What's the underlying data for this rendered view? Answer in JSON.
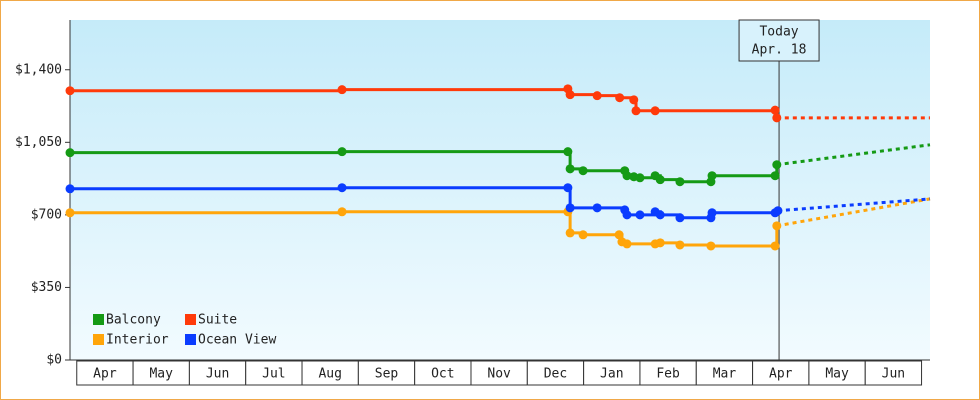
{
  "chart_data": {
    "type": "line",
    "step": true,
    "ylim": [
      0,
      1640
    ],
    "yticks": [
      {
        "value": 0,
        "label": "$0"
      },
      {
        "value": 350,
        "label": "$350"
      },
      {
        "value": 700,
        "label": "$700"
      },
      {
        "value": 1050,
        "label": "$1,050"
      },
      {
        "value": 1400,
        "label": "$1,400"
      }
    ],
    "xlim": [
      -0.12,
      15.15
    ],
    "months": [
      "Apr",
      "May",
      "Jun",
      "Jul",
      "Aug",
      "Sep",
      "Oct",
      "Nov",
      "Dec",
      "Jan",
      "Feb",
      "Mar",
      "Apr",
      "May",
      "Jun"
    ],
    "legend": "lower left",
    "annotation": {
      "x": 12.47,
      "text": "Today",
      "subtext": "Apr. 18"
    },
    "series": [
      {
        "name": "Balcony",
        "color": "#159a15",
        "x": [
          -0.12,
          4.71,
          8.72,
          8.76,
          8.99,
          9.73,
          9.77,
          9.89,
          10.0,
          10.27,
          10.36,
          10.71,
          11.26,
          11.28,
          12.4,
          12.43
        ],
        "values": [
          1000,
          1005,
          1005,
          922,
          913,
          913,
          889,
          884,
          879,
          889,
          870,
          860,
          860,
          889,
          889,
          942
        ],
        "forecast_x": [
          12.43,
          15.15
        ],
        "forecast_values": [
          942,
          1038
        ]
      },
      {
        "name": "Suite",
        "color": "#ff3a0a",
        "x": [
          -0.12,
          4.71,
          8.72,
          8.76,
          9.24,
          9.64,
          9.89,
          9.93,
          10.27,
          12.4,
          12.43
        ],
        "values": [
          1299,
          1304,
          1308,
          1280,
          1275,
          1265,
          1255,
          1202,
          1202,
          1205,
          1168
        ],
        "forecast_x": [
          12.43,
          15.15
        ],
        "forecast_values": [
          1168,
          1168
        ]
      },
      {
        "name": "Interior",
        "color": "#ffa50a",
        "x": [
          -0.12,
          4.71,
          8.72,
          8.76,
          8.99,
          9.63,
          9.68,
          9.77,
          10.27,
          10.36,
          10.71,
          11.26,
          12.4,
          12.43
        ],
        "values": [
          710,
          715,
          715,
          613,
          604,
          604,
          570,
          560,
          560,
          565,
          555,
          550,
          550,
          647
        ],
        "forecast_x": [
          12.43,
          15.15
        ],
        "forecast_values": [
          647,
          777
        ]
      },
      {
        "name": "Ocean View",
        "color": "#0a3cff",
        "x": [
          -0.12,
          4.71,
          8.72,
          8.76,
          9.24,
          9.73,
          9.77,
          10.0,
          10.27,
          10.36,
          10.71,
          11.26,
          11.28,
          12.4,
          12.45
        ],
        "values": [
          826,
          831,
          831,
          734,
          734,
          724,
          700,
          700,
          715,
          700,
          686,
          686,
          710,
          710,
          720
        ],
        "forecast_x": [
          12.45,
          15.15
        ],
        "forecast_values": [
          720,
          777
        ]
      }
    ]
  }
}
